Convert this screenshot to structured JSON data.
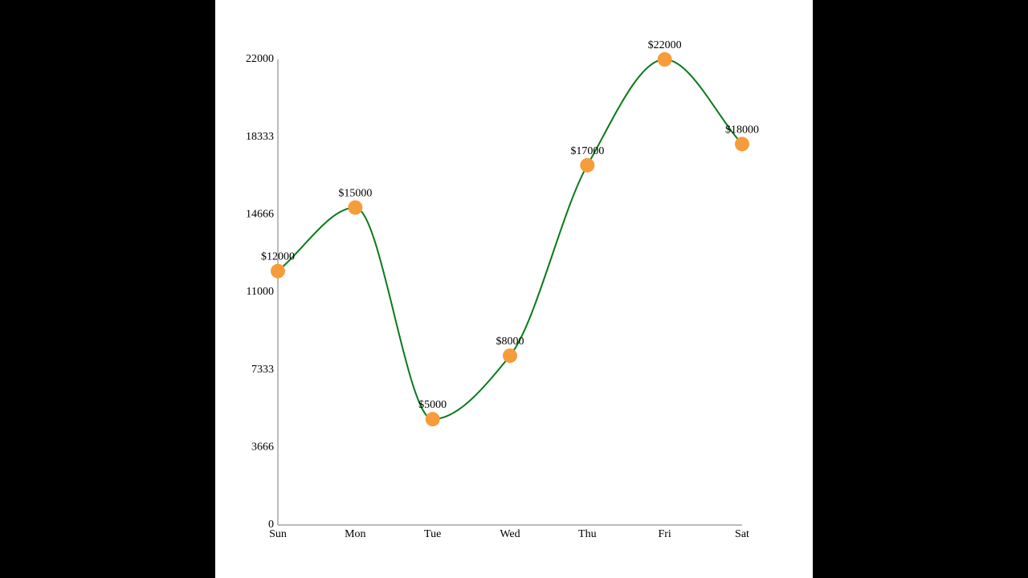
{
  "chart_data": {
    "type": "line",
    "categories": [
      "Sun",
      "Mon",
      "Tue",
      "Wed",
      "Thu",
      "Fri",
      "Sat"
    ],
    "values": [
      12000,
      15000,
      5000,
      8000,
      17000,
      22000,
      18000
    ],
    "data_labels": [
      "$12000",
      "$15000",
      "$5000",
      "$8000",
      "$17000",
      "$22000",
      "$18000"
    ],
    "y_ticks": [
      0,
      3666,
      7333,
      11000,
      14666,
      18333,
      22000
    ],
    "ylim": [
      0,
      22000
    ],
    "curve": "smooth",
    "grid": false,
    "legend": "none",
    "title": "",
    "xlabel": "",
    "ylabel": ""
  },
  "colors": {
    "page_background": "#000000",
    "chart_background": "#ffffff",
    "line": "#0a7a1a",
    "marker": "#f79c3a",
    "axis": "#777777"
  }
}
